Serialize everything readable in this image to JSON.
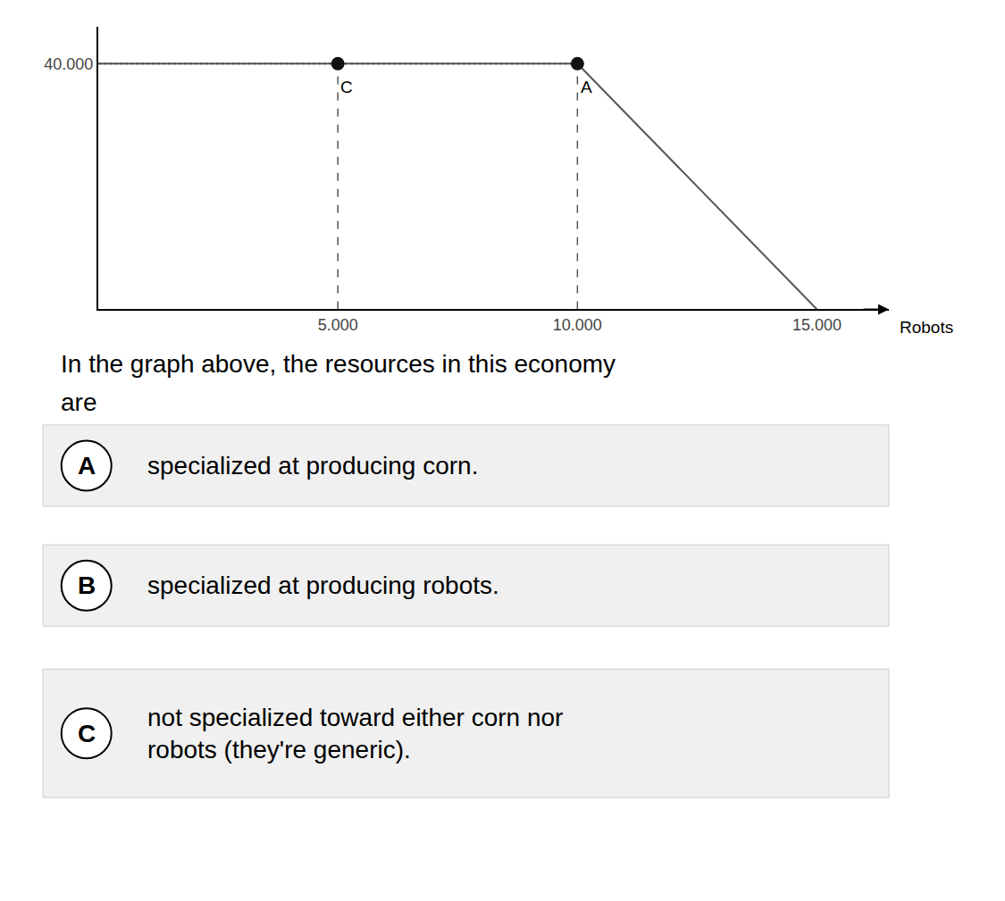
{
  "chart_data": {
    "type": "line",
    "x": [
      0,
      10000,
      15000
    ],
    "values": [
      40000,
      40000,
      0
    ],
    "color": "#555555",
    "xlabel": "Robots",
    "xlim": [
      0,
      16500
    ],
    "ylim": [
      0,
      46000
    ],
    "xticks": [
      {
        "value": 5000,
        "label": "5.000"
      },
      {
        "value": 10000,
        "label": "10.000"
      },
      {
        "value": 15000,
        "label": "15.000"
      }
    ],
    "yticks": [
      {
        "value": 40000,
        "label": "40.000"
      }
    ],
    "grid": false,
    "marker": "circle",
    "annotations": [
      {
        "text": "C",
        "x": 5000,
        "y": 40000,
        "color": "#111111"
      },
      {
        "text": "A",
        "x": 10000,
        "y": 40000,
        "color": "#111111"
      }
    ]
  },
  "question": [
    "In the graph above, the resources in this economy",
    "are"
  ],
  "options": [
    {
      "label": "A",
      "text": [
        "specialized at producing corn."
      ]
    },
    {
      "label": "B",
      "text": [
        "specialized at producing robots."
      ]
    },
    {
      "label": "C",
      "text": [
        "not specialized toward either corn nor",
        "robots (they're generic)."
      ]
    }
  ],
  "options_color": "#f0f0f0"
}
